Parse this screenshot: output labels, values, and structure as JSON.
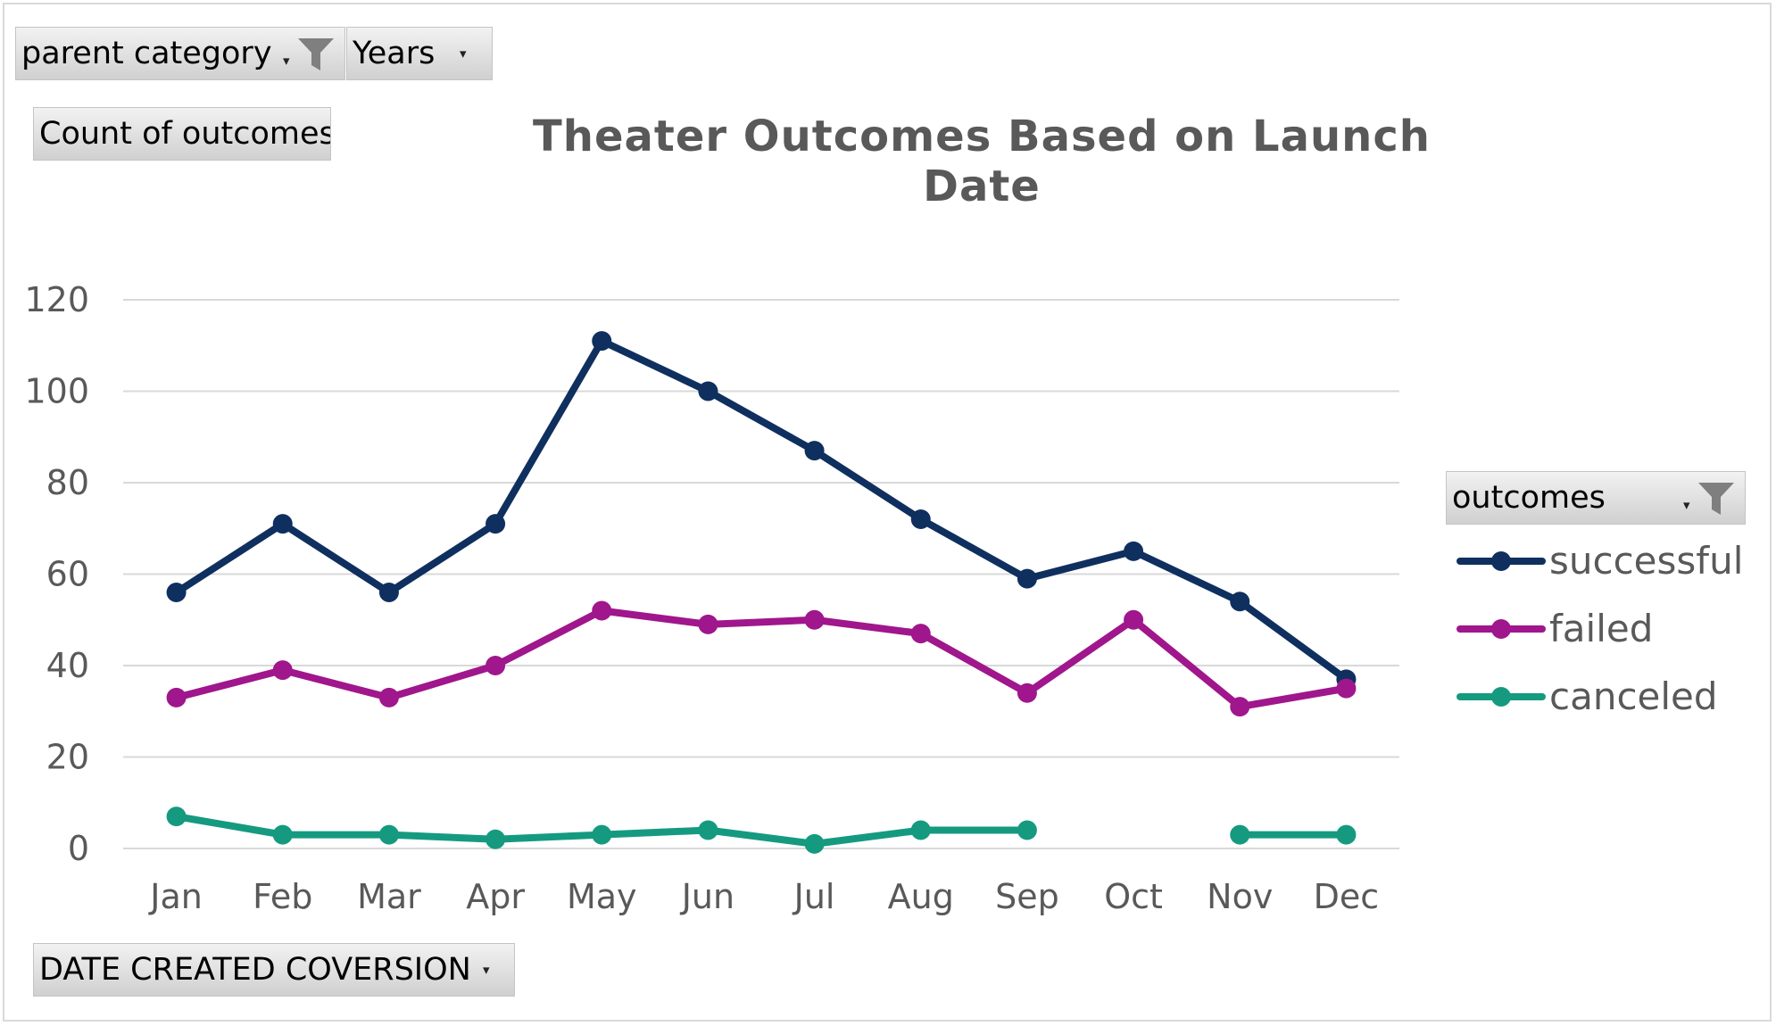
{
  "pivot": {
    "parent_category_label": "parent category",
    "years_label": "Years",
    "value_field_label": "Count of outcomes",
    "axis_field_label": "DATE CREATED COVERSION",
    "legend_field_label": "outcomes"
  },
  "colors": {
    "successful": "#0f2f5f",
    "failed": "#a0168c",
    "canceled": "#159a80",
    "gridline": "#d9d9d9",
    "text": "#595959"
  },
  "chart_data": {
    "type": "line",
    "title": "Theater Outcomes Based on Launch Date",
    "xlabel": "",
    "ylabel": "",
    "categories": [
      "Jan",
      "Feb",
      "Mar",
      "Apr",
      "May",
      "Jun",
      "Jul",
      "Aug",
      "Sep",
      "Oct",
      "Nov",
      "Dec"
    ],
    "ylim": [
      0,
      120
    ],
    "yticks": [
      "0",
      "20",
      "40",
      "60",
      "80",
      "100",
      "120"
    ],
    "grid": true,
    "legend_position": "right",
    "series": [
      {
        "name": "successful",
        "values": [
          56,
          71,
          56,
          71,
          111,
          100,
          87,
          72,
          59,
          65,
          54,
          37
        ]
      },
      {
        "name": "failed",
        "values": [
          33,
          39,
          33,
          40,
          52,
          49,
          50,
          47,
          34,
          50,
          31,
          35
        ]
      },
      {
        "name": "canceled",
        "values": [
          7,
          3,
          3,
          2,
          3,
          4,
          1,
          4,
          4,
          null,
          3,
          3
        ]
      }
    ]
  }
}
